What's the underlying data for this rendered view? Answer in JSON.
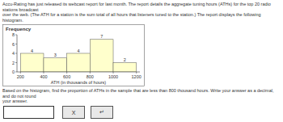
{
  "chart_data": {
    "type": "histogram",
    "title": "Frequency",
    "xlabel": "ATH (in thousands of hours)",
    "bins": [
      200,
      400,
      600,
      800,
      1000,
      1200
    ],
    "values": [
      4,
      3,
      4,
      7,
      2
    ],
    "color": "#ffffcc",
    "data_labels": true,
    "xlim": [
      170,
      1230
    ],
    "xticks": [
      200,
      400,
      600,
      800,
      1000,
      1200
    ],
    "ylim": [
      0,
      8
    ],
    "yticks": [
      0,
      2,
      4,
      6,
      8
    ],
    "grid": false,
    "annotations": [
      "Accu-Rating has just released its webcast report for last month. The report details the aggregate tuning hours (ATHs) for the top 20 radio stations broadcast\nover the web. (The ATH for a station is the sum total of all hours that listeners tuned to the station.) The report displays the following histogram.",
      "Based on the histogram, find the proportion of ATHs in the sample that are less than 800 thousand hours. Write your answer as a decimal, and do not round\nyour answer.",
      "X",
      "↵"
    ]
  }
}
